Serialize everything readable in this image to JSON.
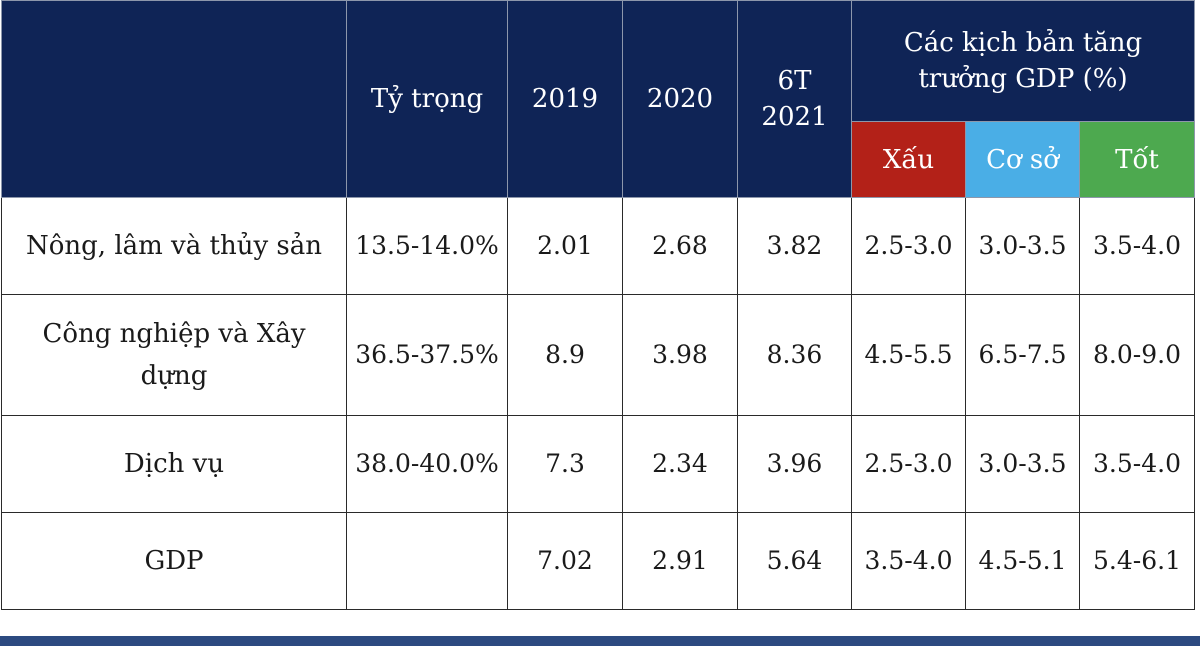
{
  "chart_data": {
    "type": "table",
    "header": {
      "share": "Tỷ trọng",
      "years": [
        "2019",
        "2020",
        "6T 2021"
      ],
      "scenario_group": "Các kịch bản tăng trưởng GDP (%)",
      "scenarios": [
        "Xấu",
        "Cơ sở",
        "Tốt"
      ]
    },
    "scenario_colors": {
      "bad": "#b32118",
      "base": "#4aaee6",
      "good": "#4da94f",
      "header_bg": "#0f2456"
    },
    "rows": [
      {
        "category": "Nông, lâm và thủy sản",
        "share": "13.5-14.0%",
        "values": [
          "2.01",
          "2.68",
          "3.82"
        ],
        "scenarios": [
          "2.5-3.0",
          "3.0-3.5",
          "3.5-4.0"
        ]
      },
      {
        "category": "Công nghiệp và Xây dựng",
        "share": "36.5-37.5%",
        "values": [
          "8.9",
          "3.98",
          "8.36"
        ],
        "scenarios": [
          "4.5-5.5",
          "6.5-7.5",
          "8.0-9.0"
        ]
      },
      {
        "category": "Dịch vụ",
        "share": "38.0-40.0%",
        "values": [
          "7.3",
          "2.34",
          "3.96"
        ],
        "scenarios": [
          "2.5-3.0",
          "3.0-3.5",
          "3.5-4.0"
        ]
      },
      {
        "category": "GDP",
        "share": "",
        "values": [
          "7.02",
          "2.91",
          "5.64"
        ],
        "scenarios": [
          "3.5-4.0",
          "4.5-5.1",
          "5.4-6.1"
        ]
      }
    ]
  }
}
